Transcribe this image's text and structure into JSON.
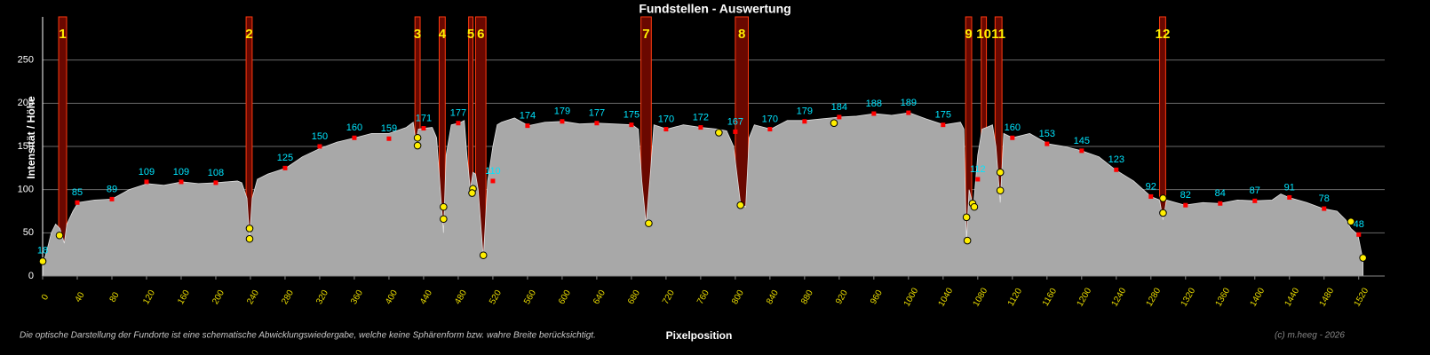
{
  "chart_data": {
    "type": "area",
    "title": "Fundstellen - Auswertung",
    "ylabel": "Intensität / Höhe",
    "xlabel": "Pixelposition",
    "note": "Die optische Darstellung der Fundorte ist eine schematische Abwicklungswiedergabe, welche keine Sphärenform bzw. wahre Breite berücksichtigt.",
    "credit": "(c) m.heeg - 2026",
    "xlim": [
      0,
      1550
    ],
    "ylim": [
      0,
      300
    ],
    "xticks": [
      0,
      40,
      80,
      120,
      160,
      200,
      240,
      280,
      320,
      360,
      400,
      440,
      480,
      520,
      560,
      600,
      640,
      680,
      720,
      760,
      800,
      840,
      880,
      920,
      960,
      1000,
      1040,
      1080,
      1120,
      1160,
      1200,
      1240,
      1280,
      1320,
      1360,
      1400,
      1440,
      1480,
      1520
    ],
    "yticks": [
      0,
      50,
      100,
      150,
      200,
      250
    ],
    "grid": true,
    "profile": {
      "color": "#a8a8a8",
      "x": [
        0,
        5,
        10,
        15,
        20,
        25,
        28,
        35,
        41,
        60,
        80,
        100,
        121,
        140,
        161,
        180,
        200,
        225,
        230,
        236,
        239,
        242,
        248,
        260,
        281,
        300,
        321,
        340,
        361,
        380,
        400,
        420,
        428,
        431,
        434,
        441,
        450,
        455,
        460,
        463,
        466,
        472,
        481,
        487,
        490,
        494,
        497,
        500,
        503,
        509,
        514,
        517,
        520,
        525,
        530,
        545,
        561,
        580,
        601,
        620,
        641,
        660,
        681,
        688,
        692,
        697,
        702,
        706,
        721,
        740,
        761,
        780,
        790,
        798,
        806,
        812,
        816,
        822,
        841,
        860,
        881,
        900,
        921,
        940,
        961,
        980,
        1001,
        1020,
        1041,
        1060,
        1064,
        1067,
        1070,
        1075,
        1080,
        1085,
        1090,
        1097,
        1101,
        1106,
        1110,
        1120,
        1140,
        1161,
        1180,
        1200,
        1220,
        1239,
        1260,
        1280,
        1290,
        1294,
        1298,
        1319,
        1340,
        1359,
        1380,
        1399,
        1420,
        1430,
        1439,
        1460,
        1479,
        1495,
        1505,
        1511,
        1519,
        1525
      ],
      "values": [
        12,
        30,
        50,
        60,
        55,
        38,
        60,
        75,
        85,
        88,
        89,
        100,
        107,
        105,
        109,
        107,
        108,
        110,
        108,
        90,
        45,
        90,
        112,
        118,
        125,
        138,
        148,
        155,
        160,
        165,
        165,
        172,
        178,
        155,
        170,
        171,
        172,
        160,
        90,
        50,
        140,
        175,
        177,
        180,
        140,
        100,
        120,
        118,
        100,
        20,
        110,
        130,
        150,
        175,
        178,
        183,
        174,
        178,
        179,
        176,
        177,
        176,
        175,
        170,
        110,
        60,
        120,
        175,
        170,
        175,
        172,
        170,
        168,
        150,
        84,
        80,
        160,
        175,
        170,
        180,
        180,
        182,
        184,
        185,
        188,
        186,
        189,
        182,
        175,
        178,
        170,
        40,
        100,
        80,
        140,
        170,
        172,
        175,
        150,
        85,
        165,
        160,
        165,
        153,
        150,
        145,
        138,
        123,
        110,
        92,
        88,
        65,
        88,
        82,
        85,
        84,
        88,
        87,
        88,
        95,
        91,
        85,
        78,
        75,
        65,
        55,
        48,
        18
      ]
    },
    "samples": {
      "color": "#ff0000",
      "label_color": "#00e5ff",
      "x": [
        0,
        40,
        80,
        120,
        160,
        200,
        280,
        320,
        360,
        400,
        440,
        480,
        520,
        560,
        600,
        640,
        680,
        720,
        760,
        800,
        840,
        880,
        920,
        960,
        1000,
        1040,
        1080,
        1120,
        1160,
        1200,
        1240,
        1280,
        1320,
        1360,
        1400,
        1440,
        1480,
        1520
      ],
      "values": [
        18,
        85,
        89,
        109,
        109,
        108,
        125,
        150,
        160,
        159,
        171,
        177,
        110,
        174,
        179,
        177,
        175,
        170,
        172,
        167,
        170,
        179,
        184,
        188,
        189,
        175,
        112,
        160,
        153,
        145,
        123,
        92,
        82,
        84,
        87,
        91,
        78,
        48
      ]
    },
    "finds": {
      "color": "#6a0800",
      "edge_color": "#ff3a10",
      "label_color": "#ffee00",
      "items": [
        {
          "label": "1",
          "x": [
            18.5,
            27.7
          ]
        },
        {
          "label": "2",
          "x": [
            235,
            242
          ]
        },
        {
          "label": "3",
          "x": [
            430,
            436
          ]
        },
        {
          "label": "4",
          "x": [
            458,
            465
          ]
        },
        {
          "label": "5",
          "x": [
            492,
            497
          ]
        },
        {
          "label": "6",
          "x": [
            500,
            512
          ]
        },
        {
          "label": "7",
          "x": [
            691,
            703
          ]
        },
        {
          "label": "8",
          "x": [
            800,
            815
          ]
        },
        {
          "label": "9",
          "x": [
            1066,
            1073
          ]
        },
        {
          "label": "10",
          "x": [
            1084,
            1090
          ]
        },
        {
          "label": "11",
          "x": [
            1100,
            1108
          ]
        },
        {
          "label": "12",
          "x": [
            1290,
            1297
          ]
        }
      ]
    },
    "edges": {
      "color": "#ffee00",
      "x": [
        0,
        19.5,
        239,
        239,
        433,
        433,
        463,
        463,
        497,
        496,
        509,
        700,
        781,
        806,
        914,
        1067,
        1068,
        1074,
        1076,
        1106,
        1106,
        1294,
        1294,
        1511,
        1525
      ],
      "values": [
        17,
        47,
        55,
        43,
        160,
        151,
        80,
        66,
        101,
        96,
        24,
        61,
        166,
        82,
        177,
        68,
        41,
        84,
        80,
        120,
        99,
        90,
        73,
        63,
        21
      ]
    }
  }
}
